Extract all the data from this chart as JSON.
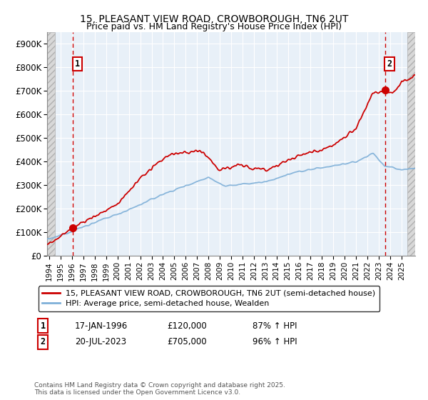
{
  "title_line1": "15, PLEASANT VIEW ROAD, CROWBOROUGH, TN6 2UT",
  "title_line2": "Price paid vs. HM Land Registry's House Price Index (HPI)",
  "ylim": [
    0,
    950000
  ],
  "xlim_start": 1993.8,
  "xlim_end": 2026.2,
  "yticks": [
    0,
    100000,
    200000,
    300000,
    400000,
    500000,
    600000,
    700000,
    800000,
    900000
  ],
  "ytick_labels": [
    "£0",
    "£100K",
    "£200K",
    "£300K",
    "£400K",
    "£500K",
    "£600K",
    "£700K",
    "£800K",
    "£900K"
  ],
  "sale1_year": 1996.04,
  "sale1_price": 120000,
  "sale2_year": 2023.54,
  "sale2_price": 705000,
  "legend_line1": "15, PLEASANT VIEW ROAD, CROWBOROUGH, TN6 2UT (semi-detached house)",
  "legend_line2": "HPI: Average price, semi-detached house, Wealden",
  "annotation1_date": "17-JAN-1996",
  "annotation1_price": "£120,000",
  "annotation1_hpi": "87% ↑ HPI",
  "annotation2_date": "20-JUL-2023",
  "annotation2_price": "£705,000",
  "annotation2_hpi": "96% ↑ HPI",
  "footer": "Contains HM Land Registry data © Crown copyright and database right 2025.\nThis data is licensed under the Open Government Licence v3.0.",
  "line_color_red": "#cc0000",
  "line_color_blue": "#7fb0d8",
  "bg_plot": "#e8f0f8",
  "grid_color": "#ffffff",
  "dashed_line_color": "#cc0000",
  "box_edge_color": "#cc0000",
  "hatch_color": "#c8c8c8"
}
